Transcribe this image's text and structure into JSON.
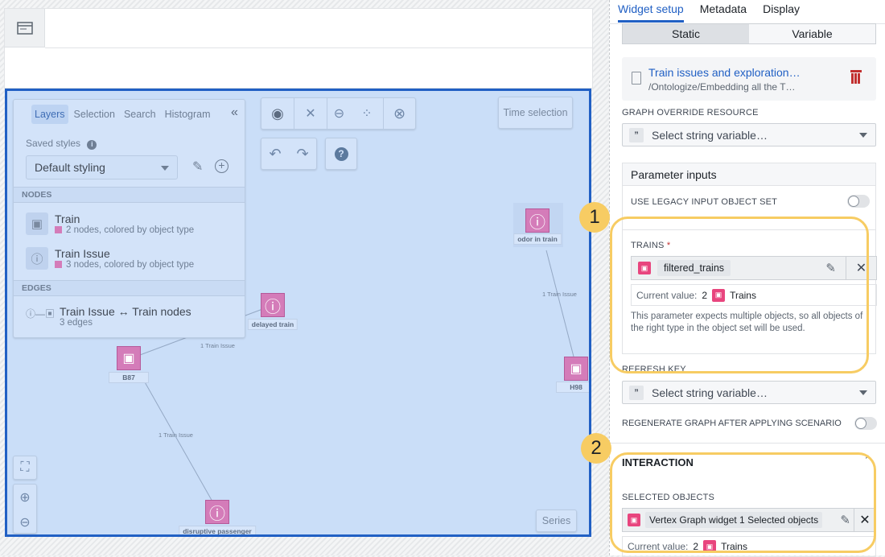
{
  "graph": {
    "layers_panel": {
      "tabs": [
        "Layers",
        "Selection",
        "Search",
        "Histogram"
      ],
      "active_tab": "Layers",
      "saved_styles_label": "Saved styles",
      "style_value": "Default styling",
      "nodes_header": "NODES",
      "edges_header": "EDGES",
      "nodes": [
        {
          "name": "Train",
          "desc": "2 nodes, colored by object type",
          "icon": "train-icon"
        },
        {
          "name": "Train Issue",
          "desc": "3 nodes, colored by object type",
          "icon": "alert-icon"
        }
      ],
      "edges": [
        {
          "name": "Train Issue ↔ Train nodes",
          "desc": "3 edges"
        }
      ]
    },
    "time_selection": "Time selection",
    "series": "Series",
    "nodes": [
      {
        "label": "delayed train",
        "type": "issue"
      },
      {
        "label": "odor in train",
        "type": "issue"
      },
      {
        "label": "B87",
        "type": "train"
      },
      {
        "label": "H98",
        "type": "train"
      },
      {
        "label": "disruptive passenger",
        "type": "issue"
      }
    ],
    "edge_label": "1 Train Issue",
    "node_color": "#d47cb9",
    "accent": "#2160c4"
  },
  "right": {
    "tabs": [
      "Widget setup",
      "Metadata",
      "Display"
    ],
    "active_tab": "Widget setup",
    "mode": [
      "Static",
      "Variable"
    ],
    "active_mode": "Static",
    "resource": {
      "title": "Train issues and exploration…",
      "path": "/Ontologize/Embedding all the T…"
    },
    "graph_override_label": "GRAPH OVERRIDE RESOURCE",
    "placeholder": "Select string variable…",
    "param_inputs": "Parameter inputs",
    "legacy_label": "USE LEGACY INPUT OBJECT SET",
    "trains_label": "TRAINS",
    "required": "*",
    "trains_value": "filtered_trains",
    "current_value_label": "Current value:",
    "current_count": "2",
    "current_type": "Trains",
    "help": "This parameter expects multiple objects, so all objects of the right type in the object set will be used.",
    "refresh_key": "REFRESH KEY",
    "regen_label": "REGENERATE GRAPH AFTER APPLYING SCENARIO",
    "interaction": "INTERACTION",
    "selected_objects_label": "SELECTED OBJECTS",
    "selected_value": "Vertex Graph widget 1 Selected objects",
    "sel_count": "2",
    "sel_type": "Trains"
  },
  "callouts": [
    "1",
    "2"
  ]
}
